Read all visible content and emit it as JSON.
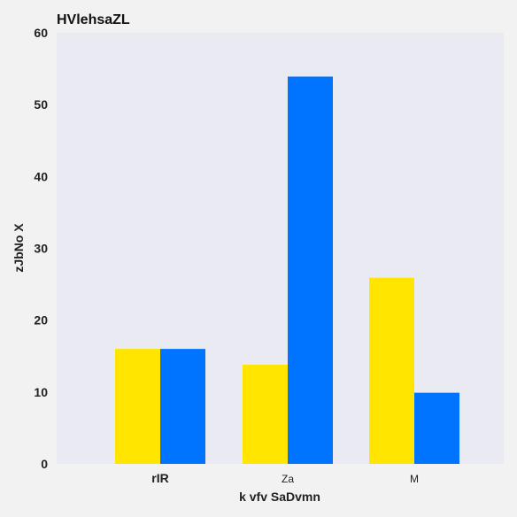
{
  "colors": {
    "page_background": "#f2f2f2",
    "plot_background": "#eaeaf2",
    "series_1": "#ffe500",
    "series_2": "#0073ff"
  },
  "chart_data": {
    "type": "bar",
    "title": "HVlehsaZL",
    "xlabel": "k vfv SaDvmn",
    "ylabel": "zJbNo X",
    "categories": [
      "rIR",
      "Za",
      "M"
    ],
    "series": [
      {
        "values": [
          16,
          13.8,
          25.9
        ]
      },
      {
        "values": [
          16,
          53.9,
          9.9
        ]
      }
    ],
    "ylim": [
      0,
      60
    ],
    "yticks": [
      0,
      10,
      20,
      30,
      40,
      50,
      60
    ],
    "grid": false,
    "legend": "none"
  }
}
